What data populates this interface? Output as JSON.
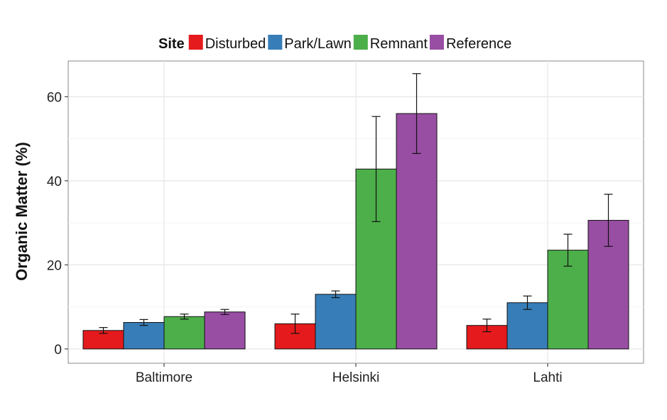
{
  "chart_data": {
    "type": "bar",
    "categories": [
      "Baltimore",
      "Helsinki",
      "Lahti"
    ],
    "ylabel": "Organic Matter (%)",
    "xlabel": "",
    "ylim": [
      -3.4,
      68.5
    ],
    "yticks": [
      0,
      20,
      40,
      60
    ],
    "grid": true,
    "legend": {
      "title": "Site",
      "position": "top"
    },
    "series": [
      {
        "name": "Disturbed",
        "color": "#e41a1c",
        "values": [
          4.4,
          6.0,
          5.6
        ],
        "errors": [
          0.7,
          2.3,
          1.5
        ]
      },
      {
        "name": "Park/Lawn",
        "color": "#377eb8",
        "values": [
          6.3,
          13.0,
          11.0
        ],
        "errors": [
          0.7,
          0.8,
          1.6
        ]
      },
      {
        "name": "Remnant",
        "color": "#4daf4a",
        "values": [
          7.7,
          42.8,
          23.5
        ],
        "errors": [
          0.6,
          12.5,
          3.8
        ]
      },
      {
        "name": "Reference",
        "color": "#984ea3",
        "values": [
          8.8,
          56.0,
          30.6
        ],
        "errors": [
          0.6,
          9.5,
          6.2
        ]
      }
    ]
  }
}
